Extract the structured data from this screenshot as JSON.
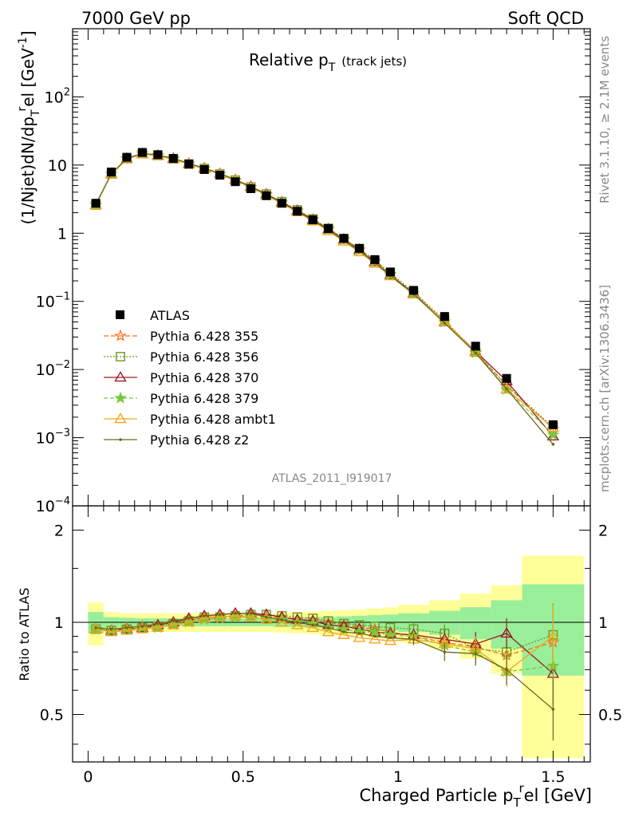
{
  "header": {
    "left": "7000 GeV pp",
    "right": "Soft QCD",
    "side_top": "Rivet 3.1.10, ≥ 2.1M events",
    "side_bottom": "mcplots.cern.ch [arXiv:1306.3436]",
    "analysis_id": "ATLAS_2011_I919017"
  },
  "chart_data": [
    {
      "type": "line",
      "title": "Relative p",
      "title_sub": "T",
      "title_suffix": "(track jets)",
      "ylabel": "(1/Njet)dN/dp",
      "ylabel_sub": "T",
      "ylabel_sup": "r",
      "ylabel_suffix": "el [GeV",
      "ylabel_unit_sup": "-1",
      "ylabel_close": "]",
      "ylim": [
        0.0001,
        1000
      ],
      "yscale": "log",
      "y_ticks": [
        {
          "base": "10",
          "exp": "2",
          "v": 100
        },
        {
          "base": "10",
          "exp": "",
          "v": 10
        },
        {
          "base": "1",
          "exp": "",
          "v": 1
        },
        {
          "base": "10",
          "exp": "−1",
          "v": 0.1
        },
        {
          "base": "10",
          "exp": "−2",
          "v": 0.01
        },
        {
          "base": "10",
          "exp": "−3",
          "v": 0.001
        },
        {
          "base": "10",
          "exp": "−4",
          "v": 0.0001
        }
      ],
      "xlim": [
        -0.05,
        1.62
      ],
      "x": [
        0.025,
        0.075,
        0.125,
        0.175,
        0.225,
        0.275,
        0.325,
        0.375,
        0.425,
        0.475,
        0.525,
        0.575,
        0.625,
        0.675,
        0.725,
        0.775,
        0.825,
        0.875,
        0.925,
        0.975,
        1.05,
        1.15,
        1.25,
        1.35,
        1.5
      ],
      "data": {
        "name": "ATLAS",
        "values": [
          2.75,
          7.9,
          13.0,
          15.3,
          14.2,
          12.5,
          10.3,
          8.6,
          7.1,
          5.7,
          4.5,
          3.55,
          2.75,
          2.1,
          1.57,
          1.17,
          0.84,
          0.6,
          0.41,
          0.27,
          0.145,
          0.06,
          0.022,
          0.0074,
          0.00155
        ]
      },
      "series": [
        {
          "name": "Pythia 6.428 355",
          "color": "#ff6d1f",
          "marker": "star-open",
          "dash": "6,3",
          "values": [
            2.6,
            7.4,
            12.5,
            14.8,
            13.9,
            12.5,
            10.5,
            8.9,
            7.4,
            6.0,
            4.75,
            3.7,
            2.85,
            2.15,
            1.6,
            1.17,
            0.82,
            0.58,
            0.39,
            0.25,
            0.13,
            0.05,
            0.018,
            0.0058,
            0.00135
          ]
        },
        {
          "name": "Pythia 6.428 356",
          "color": "#6d9a1e",
          "marker": "square-open",
          "dash": "2,2",
          "values": [
            2.6,
            7.4,
            12.4,
            14.7,
            13.8,
            12.3,
            10.4,
            8.9,
            7.4,
            6.0,
            4.75,
            3.75,
            2.9,
            2.2,
            1.62,
            1.18,
            0.83,
            0.59,
            0.4,
            0.26,
            0.138,
            0.053,
            0.018,
            0.0059,
            0.00142
          ]
        },
        {
          "name": "Pythia 6.428 370",
          "color": "#9a1b2b",
          "marker": "triangle-open",
          "dash": "",
          "values": [
            2.6,
            7.4,
            12.3,
            14.6,
            13.8,
            12.5,
            10.5,
            9.0,
            7.5,
            6.1,
            4.85,
            3.75,
            2.85,
            2.15,
            1.58,
            1.14,
            0.81,
            0.57,
            0.38,
            0.245,
            0.132,
            0.05,
            0.0185,
            0.0068,
            0.00105
          ]
        },
        {
          "name": "Pythia 6.428 379",
          "color": "#79c83a",
          "marker": "star-filled",
          "dash": "5,3",
          "values": [
            2.6,
            7.4,
            12.4,
            14.6,
            13.7,
            12.2,
            10.3,
            8.7,
            7.3,
            5.9,
            4.65,
            3.65,
            2.8,
            2.1,
            1.55,
            1.12,
            0.8,
            0.56,
            0.38,
            0.245,
            0.13,
            0.05,
            0.0175,
            0.0051,
            0.0011
          ]
        },
        {
          "name": "Pythia 6.428 ambt1",
          "color": "#f0a81e",
          "marker": "triangle-open",
          "dash": "",
          "values": [
            2.6,
            7.3,
            12.2,
            14.5,
            13.6,
            12.2,
            10.3,
            8.8,
            7.4,
            6.0,
            4.7,
            3.6,
            2.75,
            2.05,
            1.5,
            1.08,
            0.76,
            0.53,
            0.36,
            0.235,
            0.127,
            0.051,
            0.018,
            0.0051,
            0.0014
          ]
        },
        {
          "name": "Pythia 6.428 z2",
          "color": "#6b6a1c",
          "marker": "dot",
          "dash": "",
          "values": [
            2.65,
            7.5,
            12.5,
            14.9,
            14.0,
            12.6,
            10.6,
            9.0,
            7.5,
            6.1,
            4.8,
            3.7,
            2.8,
            2.1,
            1.55,
            1.12,
            0.78,
            0.55,
            0.37,
            0.24,
            0.128,
            0.048,
            0.0175,
            0.0052,
            0.0008
          ]
        }
      ]
    },
    {
      "type": "line",
      "ylabel": "Ratio to ATLAS",
      "xlabel": "Charged Particle p",
      "xlabel_sub": "T",
      "xlabel_sup": "r",
      "xlabel_suffix": "el [GeV]",
      "yscale": "log",
      "ylim": [
        0.35,
        2.4
      ],
      "y_ticks": [
        {
          "label": "2",
          "v": 2
        },
        {
          "label": "1",
          "v": 1
        },
        {
          "label": "0.5",
          "v": 0.5
        }
      ],
      "x_ticks": [
        {
          "label": "0",
          "v": 0
        },
        {
          "label": "0.5",
          "v": 0.5
        },
        {
          "label": "1",
          "v": 1
        },
        {
          "label": "1.5",
          "v": 1.5
        }
      ],
      "x_edges": [
        0.0,
        0.05,
        0.1,
        0.15,
        0.2,
        0.25,
        0.3,
        0.35,
        0.4,
        0.45,
        0.5,
        0.55,
        0.6,
        0.65,
        0.7,
        0.75,
        0.8,
        0.85,
        0.9,
        0.95,
        1.0,
        1.1,
        1.2,
        1.3,
        1.4,
        1.6
      ],
      "band_stat_half": [
        0.08,
        0.04,
        0.035,
        0.03,
        0.03,
        0.03,
        0.03,
        0.03,
        0.03,
        0.03,
        0.03,
        0.03,
        0.035,
        0.035,
        0.04,
        0.04,
        0.045,
        0.05,
        0.055,
        0.06,
        0.07,
        0.09,
        0.12,
        0.18,
        0.33
      ],
      "band_total_half": [
        0.16,
        0.08,
        0.07,
        0.07,
        0.07,
        0.07,
        0.07,
        0.07,
        0.07,
        0.07,
        0.07,
        0.07,
        0.075,
        0.08,
        0.085,
        0.09,
        0.095,
        0.1,
        0.11,
        0.12,
        0.14,
        0.18,
        0.24,
        0.32,
        0.65
      ],
      "series": [
        {
          "name": "Pythia 6.428 355",
          "values": [
            0.95,
            0.94,
            0.96,
            0.97,
            0.98,
            1.0,
            1.02,
            1.04,
            1.04,
            1.05,
            1.06,
            1.04,
            1.04,
            1.02,
            1.02,
            1.0,
            0.98,
            0.96,
            0.95,
            0.93,
            0.9,
            0.86,
            0.83,
            0.78,
            0.86
          ]
        },
        {
          "name": "Pythia 6.428 356",
          "values": [
            0.95,
            0.94,
            0.95,
            0.96,
            0.97,
            0.99,
            1.01,
            1.04,
            1.04,
            1.05,
            1.06,
            1.06,
            1.05,
            1.04,
            1.03,
            1.01,
            0.99,
            0.98,
            0.97,
            0.96,
            0.95,
            0.92,
            0.82,
            0.8,
            0.91
          ]
        },
        {
          "name": "Pythia 6.428 370",
          "values": [
            0.95,
            0.94,
            0.95,
            0.96,
            0.98,
            1.0,
            1.03,
            1.05,
            1.06,
            1.07,
            1.07,
            1.06,
            1.04,
            1.02,
            1.01,
            0.98,
            0.97,
            0.95,
            0.93,
            0.92,
            0.91,
            0.88,
            0.85,
            0.92,
            0.68
          ]
        },
        {
          "name": "Pythia 6.428 379",
          "values": [
            0.95,
            0.94,
            0.95,
            0.96,
            0.96,
            0.98,
            1.0,
            1.02,
            1.03,
            1.04,
            1.04,
            1.03,
            1.02,
            1.0,
            0.99,
            0.96,
            0.95,
            0.93,
            0.93,
            0.91,
            0.9,
            0.84,
            0.8,
            0.69,
            0.72
          ]
        },
        {
          "name": "Pythia 6.428 ambt1",
          "values": [
            0.95,
            0.93,
            0.94,
            0.95,
            0.96,
            0.98,
            1.0,
            1.03,
            1.04,
            1.05,
            1.04,
            1.02,
            1.0,
            0.98,
            0.96,
            0.93,
            0.91,
            0.89,
            0.88,
            0.87,
            0.88,
            0.85,
            0.82,
            0.69,
            0.9
          ]
        },
        {
          "name": "Pythia 6.428 z2",
          "values": [
            0.96,
            0.95,
            0.96,
            0.97,
            0.99,
            1.01,
            1.03,
            1.05,
            1.06,
            1.07,
            1.07,
            1.04,
            1.02,
            1.0,
            0.98,
            0.96,
            0.93,
            0.92,
            0.9,
            0.89,
            0.88,
            0.8,
            0.79,
            0.7,
            0.52
          ]
        }
      ]
    }
  ]
}
